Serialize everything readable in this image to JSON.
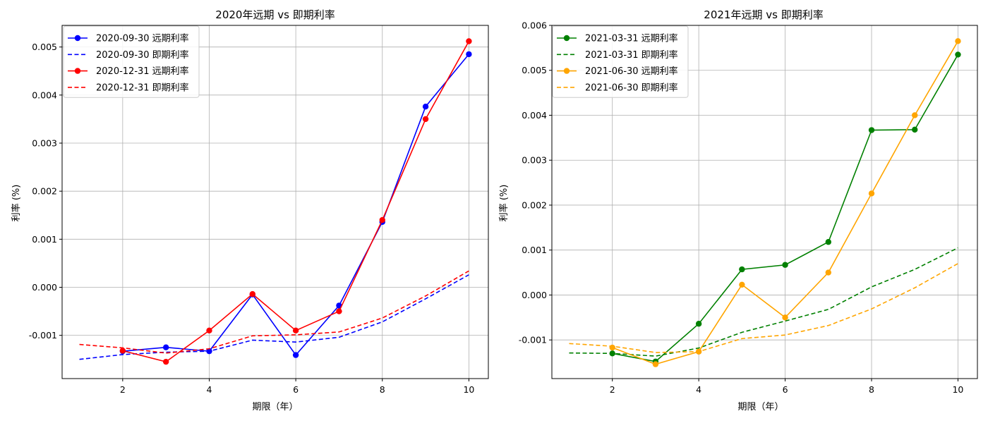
{
  "chart_data": [
    {
      "type": "line",
      "title": "2020年远期 vs 即期利率",
      "xlabel": "期限（年）",
      "ylabel": "利率 (%)",
      "xlim": [
        0.6,
        10.45
      ],
      "ylim": [
        -0.0019,
        0.00545
      ],
      "xticks": [
        2,
        4,
        6,
        8,
        10
      ],
      "yticks": [
        -0.001,
        0.0,
        0.001,
        0.002,
        0.003,
        0.004,
        0.005
      ],
      "ytick_labels": [
        "-0.001",
        "0.000",
        "0.001",
        "0.002",
        "0.003",
        "0.004",
        "0.005"
      ],
      "grid": true,
      "legend_position": "upper-left",
      "series": [
        {
          "name": "2020-09-30 远期利率",
          "color": "#0000ff",
          "style": "solid-marker",
          "x": [
            2,
            3,
            4,
            5,
            6,
            7,
            8,
            9,
            10
          ],
          "y": [
            -0.00133,
            -0.00125,
            -0.00133,
            -0.00015,
            -0.00141,
            -0.00038,
            0.00136,
            0.00376,
            0.00485
          ]
        },
        {
          "name": "2020-09-30 即期利率",
          "color": "#0000ff",
          "style": "dashed",
          "x": [
            1,
            2,
            3,
            4,
            5,
            6,
            7,
            8,
            9,
            10
          ],
          "y": [
            -0.0015,
            -0.0014,
            -0.00135,
            -0.00133,
            -0.0011,
            -0.00114,
            -0.00104,
            -0.00072,
            -0.00024,
            0.00026
          ]
        },
        {
          "name": "2020-12-31 远期利率",
          "color": "#ff0000",
          "style": "solid-marker",
          "x": [
            2,
            3,
            4,
            5,
            6,
            7,
            8,
            9,
            10
          ],
          "y": [
            -0.00132,
            -0.00155,
            -0.0009,
            -0.00014,
            -0.0009,
            -0.0005,
            0.0014,
            0.0035,
            0.00512
          ]
        },
        {
          "name": "2020-12-31 即期利率",
          "color": "#ff0000",
          "style": "dashed",
          "x": [
            1,
            2,
            3,
            4,
            5,
            6,
            7,
            8,
            9,
            10
          ],
          "y": [
            -0.00119,
            -0.00126,
            -0.00137,
            -0.00128,
            -0.00101,
            -0.00099,
            -0.00093,
            -0.00064,
            -0.00018,
            0.00034
          ]
        }
      ]
    },
    {
      "type": "line",
      "title": "2021年远期 vs 即期利率",
      "xlabel": "期限（年）",
      "ylabel": "利率 (%)",
      "xlim": [
        0.6,
        10.45
      ],
      "ylim": [
        -0.00186,
        0.006
      ],
      "xticks": [
        2,
        4,
        6,
        8,
        10
      ],
      "yticks": [
        -0.001,
        0.0,
        0.001,
        0.002,
        0.003,
        0.004,
        0.005,
        0.006
      ],
      "ytick_labels": [
        "-0.001",
        "0.000",
        "0.001",
        "0.002",
        "0.003",
        "0.004",
        "0.005",
        "0.006"
      ],
      "grid": true,
      "legend_position": "upper-left",
      "series": [
        {
          "name": "2021-03-31 远期利率",
          "color": "#008000",
          "style": "solid-marker",
          "x": [
            2,
            3,
            4,
            5,
            6,
            7,
            8,
            9,
            10
          ],
          "y": [
            -0.0013,
            -0.00148,
            -0.00064,
            0.00057,
            0.00067,
            0.00118,
            0.00367,
            0.00368,
            0.00535
          ]
        },
        {
          "name": "2021-03-31 即期利率",
          "color": "#008000",
          "style": "dashed",
          "x": [
            1,
            2,
            3,
            4,
            5,
            6,
            7,
            8,
            9,
            10
          ],
          "y": [
            -0.00129,
            -0.0013,
            -0.00136,
            -0.00118,
            -0.00083,
            -0.00058,
            -0.00032,
            0.00018,
            0.00057,
            0.00105
          ]
        },
        {
          "name": "2021-06-30 远期利率",
          "color": "#ffa500",
          "style": "solid-marker",
          "x": [
            2,
            3,
            4,
            5,
            6,
            7,
            8,
            9,
            10
          ],
          "y": [
            -0.00117,
            -0.00154,
            -0.00126,
            0.00023,
            -0.0005,
            0.0005,
            0.00226,
            0.004,
            0.00565
          ]
        },
        {
          "name": "2021-06-30 即期利率",
          "color": "#ffa500",
          "style": "dashed",
          "x": [
            1,
            2,
            3,
            4,
            5,
            6,
            7,
            8,
            9,
            10
          ],
          "y": [
            -0.00108,
            -0.00114,
            -0.00128,
            -0.00126,
            -0.00097,
            -0.00089,
            -0.00068,
            -0.00031,
            0.00016,
            0.0007
          ]
        }
      ]
    }
  ]
}
